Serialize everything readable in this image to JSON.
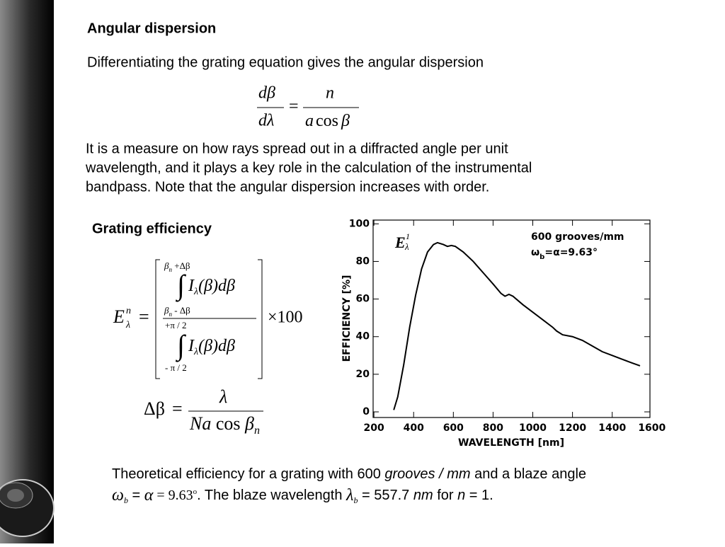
{
  "slide": {
    "heading1": "Angular dispersion",
    "intro": "Differentiating the grating equation gives the angular dispersion",
    "equation1": {
      "num_left": "dβ",
      "den_left": "dλ",
      "equals": "=",
      "num_right": "n",
      "den_right_a": "a",
      "den_right_cos": "cos",
      "den_right_beta": "β"
    },
    "paragraph": [
      "It is a measure on how rays spread out in a diffracted angle per unit",
      "wavelength, and it plays a key role in the calculation of the instrumental",
      "bandpass. Note that the angular dispersion increases with order."
    ],
    "heading2": "Grating efficiency",
    "equation2": {
      "lhs": "E",
      "lhs_sup": "n",
      "lhs_sub": "λ",
      "equals": "=",
      "num_upper": [
        "β",
        "n",
        " +Δβ"
      ],
      "num_lower": [
        "β",
        "n",
        " - Δβ"
      ],
      "integral": "∫",
      "integrand": [
        "I",
        "λ",
        "(β)dβ"
      ],
      "den_upper": "+π / 2",
      "den_lower": "- π / 2",
      "times": "×100"
    },
    "equation3": {
      "lhs": "Δβ",
      "equals": "=",
      "num": "λ",
      "den": [
        "Na",
        " cos ",
        "β",
        "n"
      ]
    },
    "caption": {
      "line1": [
        "Theoretical efficiency for a grating with 600 ",
        "grooves / mm",
        " and a blaze angle"
      ],
      "line2": [
        "ω",
        "b",
        " = ",
        "α",
        " = 9.63",
        "o",
        ". The blaze wavelength ",
        "λ",
        "b",
        " = 557.7 ",
        "nm",
        " for ",
        "n",
        " = 1."
      ]
    }
  },
  "chart": {
    "type": "line",
    "annotation": [
      "E",
      "1",
      "λ"
    ],
    "label_lines": [
      [
        "600 grooves/mm"
      ],
      [
        "ω",
        "b",
        "=α=9.63°"
      ]
    ],
    "x_label": "WAVELENGTH [nm]",
    "y_label": "EFFICIENCY [%]",
    "x": [
      300,
      320,
      350,
      380,
      410,
      440,
      470,
      500,
      520,
      550,
      570,
      590,
      610,
      650,
      700,
      750,
      800,
      840,
      860,
      880,
      900,
      950,
      1000,
      1050,
      1100,
      1120,
      1150,
      1200,
      1250,
      1300,
      1350,
      1400,
      1450,
      1500,
      1540
    ],
    "series": [
      {
        "color": "#000000",
        "values": [
          1,
          8,
          25,
          45,
          62,
          76,
          85,
          89,
          90,
          89,
          88,
          88.5,
          88,
          85,
          80,
          74,
          68,
          63,
          61.5,
          62.5,
          61.5,
          57,
          53,
          49,
          45,
          43,
          41,
          40,
          38,
          35,
          32,
          30,
          28,
          26,
          24.5
        ]
      }
    ],
    "xlim": [
      196,
      1590
    ],
    "ylim": [
      -3,
      102
    ],
    "xticks": [
      200,
      400,
      600,
      800,
      1000,
      1200,
      1400,
      1600
    ],
    "yticks": [
      0,
      20,
      40,
      60,
      80,
      100
    ]
  }
}
